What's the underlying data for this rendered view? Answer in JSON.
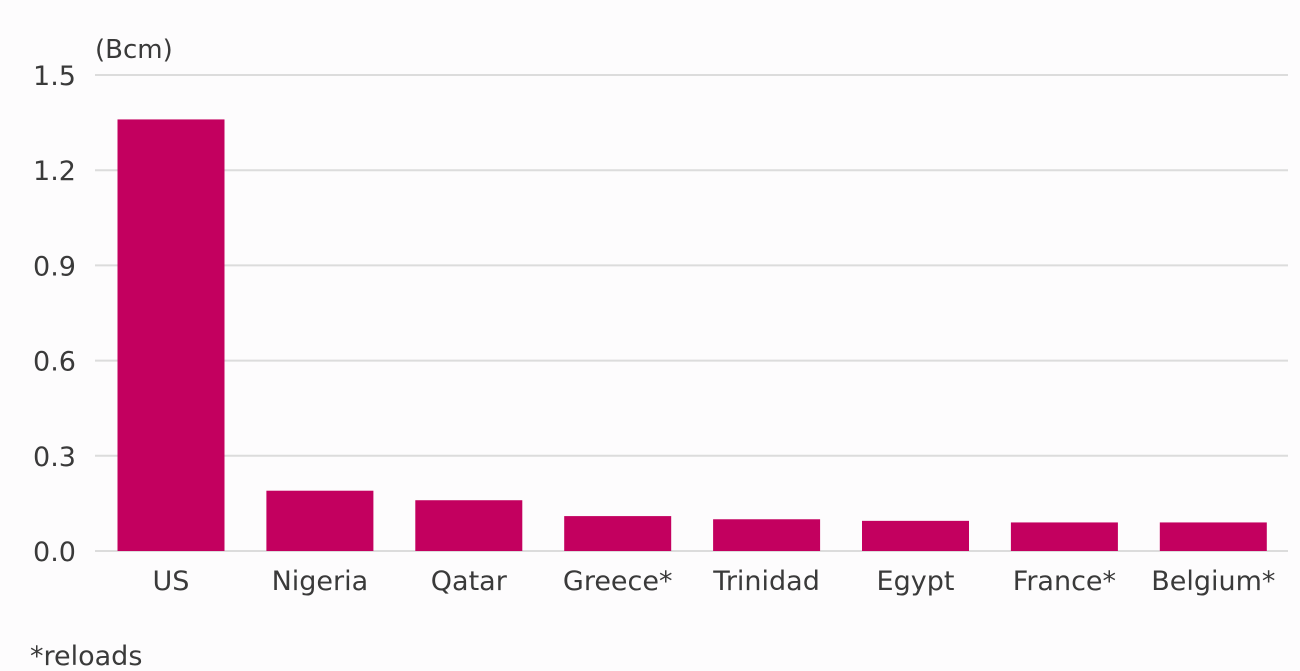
{
  "chart_data": {
    "type": "bar",
    "unit": "(Bcm)",
    "categories": [
      "US",
      "Nigeria",
      "Qatar",
      "Greece*",
      "Trinidad",
      "Egypt",
      "France*",
      "Belgium*"
    ],
    "values": [
      1.36,
      0.19,
      0.16,
      0.11,
      0.1,
      0.095,
      0.09,
      0.09
    ],
    "yticks": [
      "0.0",
      "0.3",
      "0.6",
      "0.9",
      "1.2",
      "1.5"
    ],
    "ylim": [
      0,
      1.5
    ],
    "grid": true,
    "bar_color": "#c3005f",
    "footnote": "*reloads"
  }
}
